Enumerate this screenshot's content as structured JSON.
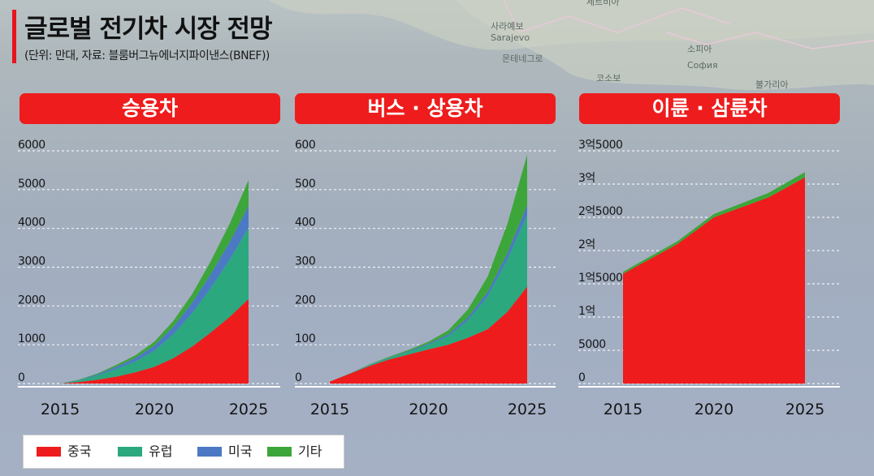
{
  "title": "글로벌 전기차 시장 전망",
  "subtitle": "(단위: 만대, 자료: 블룸버그뉴에너지파이낸스(BNEF))",
  "map_labels": [
    "세르비아",
    "사라예보",
    "Sarajevo",
    "몬테네그로",
    "코소보",
    "소피아",
    "София",
    "불가리아"
  ],
  "colors": {
    "china": "#ee1c1c",
    "europe": "#2ba87e",
    "usa": "#4c79c4",
    "other": "#3da63a",
    "header": "#ee1c1c"
  },
  "legend": [
    {
      "label": "중국",
      "color": "#ee1c1c"
    },
    {
      "label": "유럽",
      "color": "#2ba87e"
    },
    {
      "label": "미국",
      "color": "#4c79c4"
    },
    {
      "label": "기타",
      "color": "#3da63a"
    }
  ],
  "chart_data": [
    {
      "type": "area",
      "title": "승용차",
      "x": [
        2015,
        2016,
        2017,
        2018,
        2019,
        2020,
        2021,
        2022,
        2023,
        2024,
        2025
      ],
      "xticks": [
        "2015",
        "2020",
        "2025"
      ],
      "yticks": [
        "0",
        "1000",
        "2000",
        "3000",
        "4000",
        "5000",
        "6000"
      ],
      "ylim": [
        0,
        6000
      ],
      "stacked": true,
      "series": [
        {
          "name": "중국",
          "values": [
            0,
            40,
            100,
            180,
            290,
            430,
            650,
            950,
            1320,
            1720,
            2180
          ]
        },
        {
          "name": "유럽",
          "values": [
            0,
            40,
            110,
            200,
            280,
            420,
            620,
            860,
            1150,
            1480,
            1840
          ]
        },
        {
          "name": "미국",
          "values": [
            0,
            10,
            30,
            60,
            90,
            130,
            190,
            270,
            360,
            450,
            560
          ]
        },
        {
          "name": "기타",
          "values": [
            0,
            10,
            25,
            45,
            70,
            100,
            150,
            220,
            330,
            470,
            670
          ]
        }
      ]
    },
    {
      "type": "area",
      "title": "버스 · 상용차",
      "x": [
        2015,
        2016,
        2017,
        2018,
        2019,
        2020,
        2021,
        2022,
        2023,
        2024,
        2025
      ],
      "xticks": [
        "2015",
        "2020",
        "2025"
      ],
      "yticks": [
        "0",
        "100",
        "200",
        "300",
        "400",
        "500",
        "600"
      ],
      "ylim": [
        0,
        600
      ],
      "stacked": true,
      "series": [
        {
          "name": "중국",
          "values": [
            5,
            25,
            45,
            62,
            75,
            88,
            100,
            118,
            140,
            185,
            250
          ]
        },
        {
          "name": "유럽",
          "values": [
            0,
            1,
            2,
            4,
            7,
            12,
            22,
            45,
            85,
            135,
            185
          ]
        },
        {
          "name": "미국",
          "values": [
            0,
            0,
            1,
            1,
            2,
            3,
            5,
            8,
            11,
            17,
            25
          ]
        },
        {
          "name": "기타",
          "values": [
            0,
            0,
            1,
            2,
            3,
            5,
            10,
            20,
            40,
            75,
            130
          ]
        }
      ]
    },
    {
      "type": "area",
      "title": "이륜 · 삼륜차",
      "x": [
        2015,
        2016,
        2017,
        2018,
        2019,
        2020,
        2021,
        2022,
        2023,
        2024,
        2025
      ],
      "xticks": [
        "2015",
        "2020",
        "2025"
      ],
      "yticks": [
        "0",
        "5000",
        "1억",
        "1억5000",
        "2억",
        "2억5000",
        "3억",
        "3억5000"
      ],
      "ylim": [
        0,
        35000
      ],
      "stacked": true,
      "series": [
        {
          "name": "중국",
          "values": [
            16500,
            18000,
            19500,
            21000,
            23000,
            25000,
            26000,
            27000,
            28000,
            29500,
            31000
          ]
        },
        {
          "name": "유럽",
          "values": [
            0,
            0,
            0,
            0,
            0,
            0,
            0,
            0,
            0,
            0,
            0
          ]
        },
        {
          "name": "미국",
          "values": [
            0,
            0,
            0,
            0,
            0,
            0,
            0,
            0,
            0,
            0,
            0
          ]
        },
        {
          "name": "기타",
          "values": [
            300,
            350,
            380,
            420,
            460,
            500,
            560,
            620,
            680,
            740,
            800
          ]
        }
      ]
    }
  ]
}
